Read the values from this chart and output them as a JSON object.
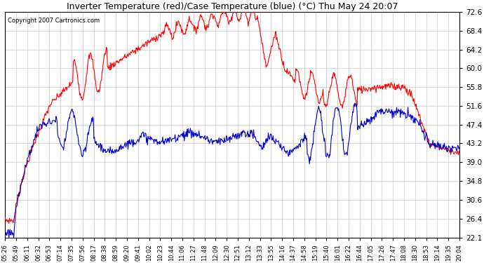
{
  "title": "Inverter Temperature (red)/Case Temperature (blue) (°C) Thu May 24 20:07",
  "copyright": "Copyright 2007 Cartronics.com",
  "yticks": [
    22.1,
    26.4,
    30.6,
    34.8,
    39.0,
    43.2,
    47.4,
    51.6,
    55.8,
    60.0,
    64.2,
    68.4,
    72.6
  ],
  "ymin": 22.1,
  "ymax": 72.6,
  "red_color": "#ff0000",
  "blue_color": "#0000cc",
  "bg_color": "#ffffff",
  "grid_color": "#c8c8c8",
  "xtick_labels": [
    "05:26",
    "05:49",
    "06:11",
    "06:32",
    "06:53",
    "07:14",
    "07:35",
    "07:56",
    "08:17",
    "08:38",
    "08:59",
    "09:20",
    "09:41",
    "10:02",
    "10:23",
    "10:44",
    "11:06",
    "11:27",
    "11:48",
    "12:09",
    "12:30",
    "12:51",
    "13:12",
    "13:33",
    "13:55",
    "14:16",
    "14:37",
    "14:58",
    "15:19",
    "15:40",
    "16:01",
    "16:22",
    "16:44",
    "17:05",
    "17:26",
    "17:47",
    "18:08",
    "18:30",
    "18:53",
    "19:14",
    "19:35",
    "20:04"
  ]
}
